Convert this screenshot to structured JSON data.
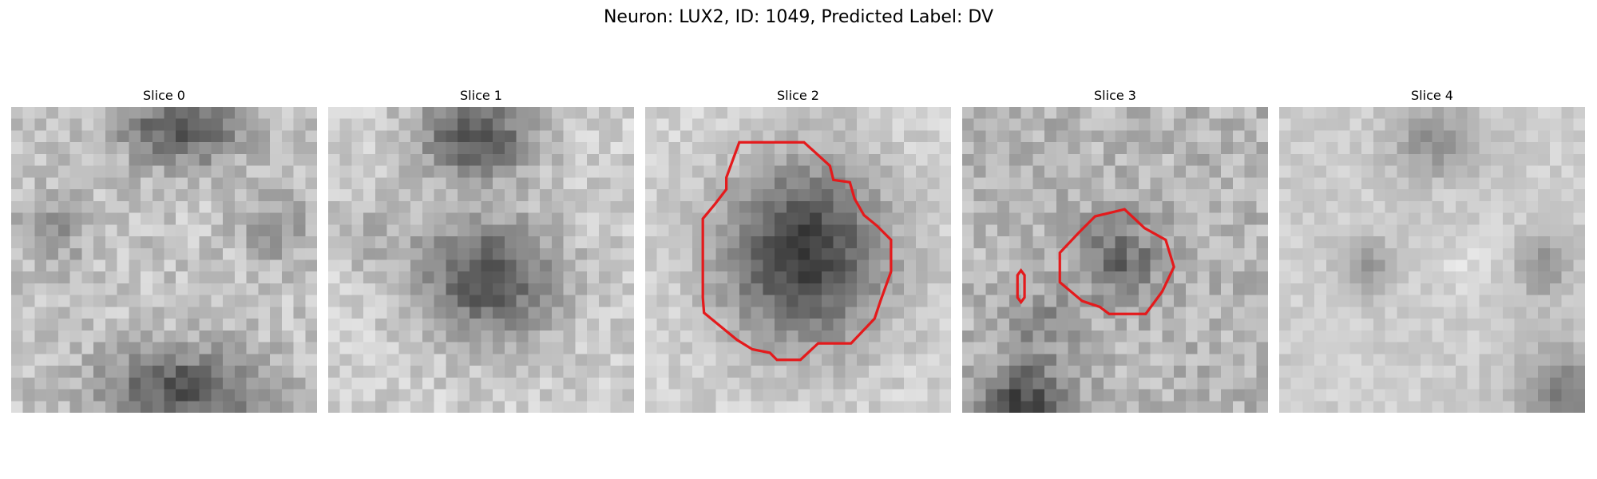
{
  "figure": {
    "title": "Neuron: LUX2, ID: 1049, Predicted Label: DV"
  },
  "panels": [
    {
      "title": "Slice 0"
    },
    {
      "title": "Slice 1"
    },
    {
      "title": "Slice 2"
    },
    {
      "title": "Slice 3"
    },
    {
      "title": "Slice 4"
    }
  ],
  "colors": {
    "contour": "#e41a1c",
    "background": "#ffffff"
  }
}
